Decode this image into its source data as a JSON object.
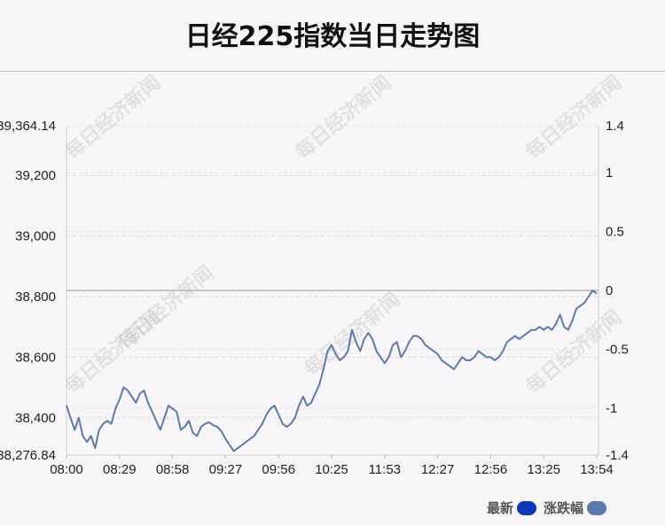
{
  "title": "日经225指数当日走势图",
  "watermark": "每日经济新闻",
  "legend": {
    "items": [
      {
        "label": "最新",
        "color": "#1036b8"
      },
      {
        "label": "涨跌幅",
        "color": "#5e7aa8"
      }
    ]
  },
  "chart_data": {
    "type": "line",
    "title": "日经225指数当日走势图",
    "x_ticks": [
      "08:00",
      "08:29",
      "08:58",
      "09:27",
      "09:56",
      "10:25",
      "11:53",
      "12:27",
      "12:56",
      "13:25",
      "13:54"
    ],
    "y_left_ticks": [
      38276.84,
      38400,
      38600,
      38800,
      39000,
      39200,
      39364.14
    ],
    "y_left_tick_labels": [
      "38,276.84",
      "38,400",
      "38,600",
      "38,800",
      "39,000",
      "39,200",
      "39,364.14"
    ],
    "y_left_range": [
      38276.84,
      39364.14
    ],
    "y_right_ticks": [
      -1.4,
      -1,
      -0.5,
      0,
      0.5,
      1,
      1.4
    ],
    "y_right_tick_labels": [
      "-1.4",
      "-1",
      "-0.5",
      "0",
      "0.5",
      "1",
      "1.4"
    ],
    "y_right_range": [
      -1.4,
      1.4
    ],
    "reference_value": 38820,
    "grid": true,
    "legend_position": "bottom-right",
    "series": [
      {
        "name": "最新",
        "color": "#5e7aa8",
        "points": [
          [
            0,
            38440
          ],
          [
            1,
            38400
          ],
          [
            2,
            38360
          ],
          [
            3,
            38400
          ],
          [
            4,
            38340
          ],
          [
            5,
            38320
          ],
          [
            6,
            38340
          ],
          [
            7,
            38300
          ],
          [
            8,
            38360
          ],
          [
            9,
            38380
          ],
          [
            10,
            38390
          ],
          [
            11,
            38380
          ],
          [
            12,
            38430
          ],
          [
            13,
            38460
          ],
          [
            14,
            38500
          ],
          [
            15,
            38490
          ],
          [
            16,
            38470
          ],
          [
            17,
            38450
          ],
          [
            18,
            38480
          ],
          [
            19,
            38490
          ],
          [
            20,
            38450
          ],
          [
            21,
            38420
          ],
          [
            22,
            38390
          ],
          [
            23,
            38360
          ],
          [
            24,
            38400
          ],
          [
            25,
            38440
          ],
          [
            26,
            38430
          ],
          [
            27,
            38420
          ],
          [
            28,
            38360
          ],
          [
            29,
            38370
          ],
          [
            30,
            38390
          ],
          [
            31,
            38350
          ],
          [
            32,
            38340
          ],
          [
            33,
            38370
          ],
          [
            34,
            38380
          ],
          [
            35,
            38385
          ],
          [
            36,
            38375
          ],
          [
            37,
            38370
          ],
          [
            38,
            38355
          ],
          [
            39,
            38330
          ],
          [
            40,
            38310
          ],
          [
            41,
            38290
          ],
          [
            42,
            38300
          ],
          [
            43,
            38310
          ],
          [
            44,
            38320
          ],
          [
            45,
            38330
          ],
          [
            46,
            38340
          ],
          [
            47,
            38360
          ],
          [
            48,
            38380
          ],
          [
            49,
            38410
          ],
          [
            50,
            38430
          ],
          [
            51,
            38440
          ],
          [
            52,
            38410
          ],
          [
            53,
            38380
          ],
          [
            54,
            38370
          ],
          [
            55,
            38380
          ],
          [
            56,
            38400
          ],
          [
            57,
            38440
          ],
          [
            58,
            38470
          ],
          [
            59,
            38440
          ],
          [
            60,
            38450
          ],
          [
            61,
            38480
          ],
          [
            62,
            38510
          ],
          [
            63,
            38560
          ],
          [
            64,
            38620
          ],
          [
            65,
            38640
          ],
          [
            66,
            38610
          ],
          [
            67,
            38590
          ],
          [
            68,
            38600
          ],
          [
            69,
            38620
          ],
          [
            70,
            38690
          ],
          [
            71,
            38650
          ],
          [
            72,
            38620
          ],
          [
            73,
            38660
          ],
          [
            74,
            38680
          ],
          [
            75,
            38660
          ],
          [
            76,
            38620
          ],
          [
            77,
            38600
          ],
          [
            78,
            38580
          ],
          [
            79,
            38600
          ],
          [
            80,
            38640
          ],
          [
            81,
            38650
          ],
          [
            82,
            38600
          ],
          [
            83,
            38620
          ],
          [
            84,
            38650
          ],
          [
            85,
            38670
          ],
          [
            86,
            38670
          ],
          [
            87,
            38660
          ],
          [
            88,
            38640
          ],
          [
            89,
            38630
          ],
          [
            90,
            38620
          ],
          [
            91,
            38610
          ],
          [
            92,
            38590
          ],
          [
            93,
            38580
          ],
          [
            94,
            38570
          ],
          [
            95,
            38560
          ],
          [
            96,
            38580
          ],
          [
            97,
            38600
          ],
          [
            98,
            38590
          ],
          [
            99,
            38590
          ],
          [
            100,
            38600
          ],
          [
            101,
            38620
          ],
          [
            102,
            38610
          ],
          [
            103,
            38600
          ],
          [
            104,
            38600
          ],
          [
            105,
            38590
          ],
          [
            106,
            38600
          ],
          [
            107,
            38620
          ],
          [
            108,
            38650
          ],
          [
            109,
            38660
          ],
          [
            110,
            38670
          ],
          [
            111,
            38660
          ],
          [
            112,
            38670
          ],
          [
            113,
            38680
          ],
          [
            114,
            38690
          ],
          [
            115,
            38690
          ],
          [
            116,
            38700
          ],
          [
            117,
            38690
          ],
          [
            118,
            38700
          ],
          [
            119,
            38690
          ],
          [
            120,
            38710
          ],
          [
            121,
            38740
          ],
          [
            122,
            38700
          ],
          [
            123,
            38690
          ],
          [
            124,
            38720
          ],
          [
            125,
            38760
          ],
          [
            126,
            38770
          ],
          [
            127,
            38780
          ],
          [
            128,
            38800
          ],
          [
            129,
            38820
          ],
          [
            130,
            38810
          ]
        ]
      }
    ]
  }
}
